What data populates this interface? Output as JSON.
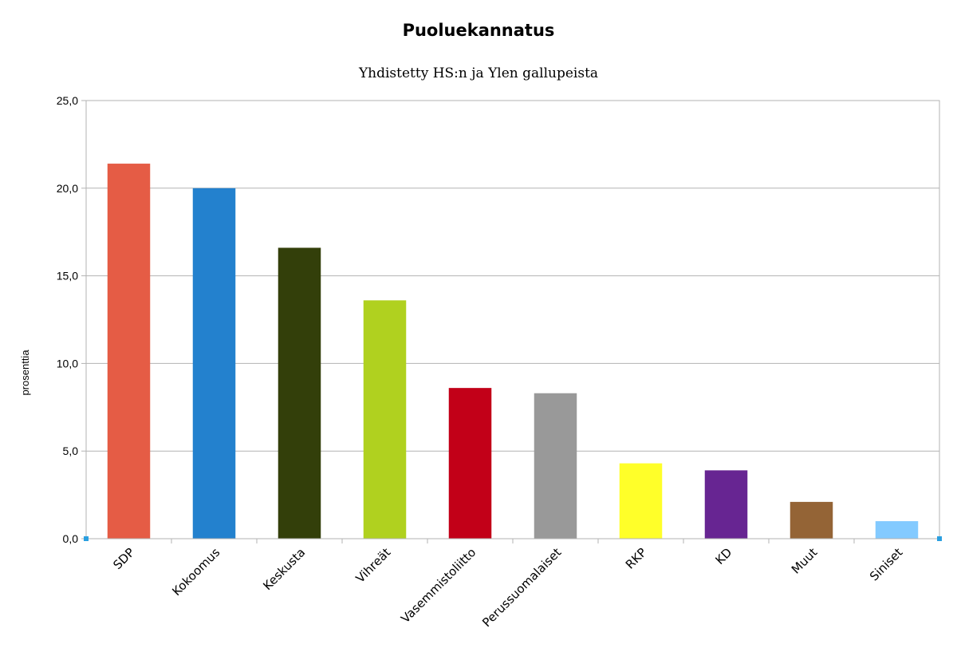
{
  "chart_data": {
    "type": "bar",
    "title": "Puoluekannatus",
    "subtitle": "Yhdistetty HS:n ja Ylen gallupeista",
    "xlabel": "",
    "ylabel": "prosenttia",
    "ylim": [
      0,
      25
    ],
    "yticks": [
      "0,0",
      "5,0",
      "10,0",
      "15,0",
      "20,0",
      "25,0"
    ],
    "grid": true,
    "legend": "none",
    "categories": [
      "SDP",
      "Kokoomus",
      "Keskusta",
      "Vihreät",
      "Vasemmistoliitto",
      "Perussuomalaiset",
      "RKP",
      "KD",
      "Muut",
      "Siniset"
    ],
    "values": [
      21.4,
      20.0,
      16.6,
      13.6,
      8.6,
      8.3,
      4.3,
      3.9,
      2.1,
      1.0
    ],
    "colors": [
      "#e55c45",
      "#2381ce",
      "#333f0a",
      "#b0d11f",
      "#c20018",
      "#999999",
      "#ffff29",
      "#672592",
      "#946436",
      "#83caff"
    ]
  }
}
